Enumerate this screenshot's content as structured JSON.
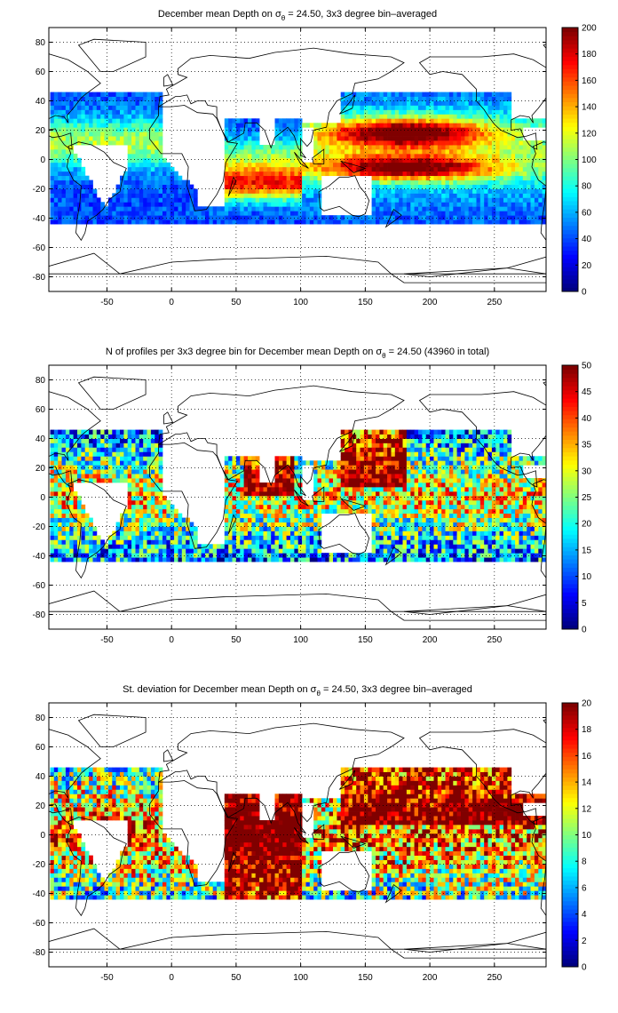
{
  "colors": {
    "land_outline": "#000000",
    "grid": "#000000",
    "background": "#ffffff",
    "colormap": "jet"
  },
  "chart_data": [
    {
      "type": "heatmap",
      "title_prefix": "December mean Depth on ",
      "title_sigma": "σ",
      "title_sub": "θ",
      "title_suffix": " = 24.50, 3x3 degree bin–averaged",
      "xlim": [
        -95,
        290
      ],
      "ylim": [
        -90,
        90
      ],
      "xticks": [
        -50,
        0,
        50,
        100,
        150,
        200,
        250
      ],
      "yticks": [
        -80,
        -60,
        -40,
        -20,
        0,
        20,
        40,
        60,
        80
      ],
      "grid": "dotted",
      "colorbar": {
        "min": 0,
        "max": 200,
        "ticks": [
          0,
          20,
          40,
          60,
          80,
          100,
          120,
          140,
          160,
          180,
          200
        ]
      },
      "field": "depth"
    },
    {
      "type": "heatmap",
      "title_prefix": "N of profiles per 3x3 degree bin for December mean Depth on ",
      "title_sigma": "σ",
      "title_sub": "θ",
      "title_suffix": " = 24.50 (43960 in total)",
      "xlim": [
        -95,
        290
      ],
      "ylim": [
        -90,
        90
      ],
      "xticks": [
        -50,
        0,
        50,
        100,
        150,
        200,
        250
      ],
      "yticks": [
        -80,
        -60,
        -40,
        -20,
        0,
        20,
        40,
        60,
        80
      ],
      "grid": "dotted",
      "colorbar": {
        "min": 0,
        "max": 50,
        "ticks": [
          0,
          5,
          10,
          15,
          20,
          25,
          30,
          35,
          40,
          45,
          50
        ]
      },
      "field": "count"
    },
    {
      "type": "heatmap",
      "title_prefix": "St. deviation for December mean Depth on ",
      "title_sigma": "σ",
      "title_sub": "θ",
      "title_suffix": " = 24.50, 3x3 degree bin–averaged",
      "xlim": [
        -95,
        290
      ],
      "ylim": [
        -90,
        90
      ],
      "xticks": [
        -50,
        0,
        50,
        100,
        150,
        200,
        250
      ],
      "yticks": [
        -80,
        -60,
        -40,
        -20,
        0,
        20,
        40,
        60,
        80
      ],
      "grid": "dotted",
      "colorbar": {
        "min": 0,
        "max": 20,
        "ticks": [
          0,
          2,
          4,
          6,
          8,
          10,
          12,
          14,
          16,
          18,
          20
        ]
      },
      "field": "std"
    }
  ]
}
